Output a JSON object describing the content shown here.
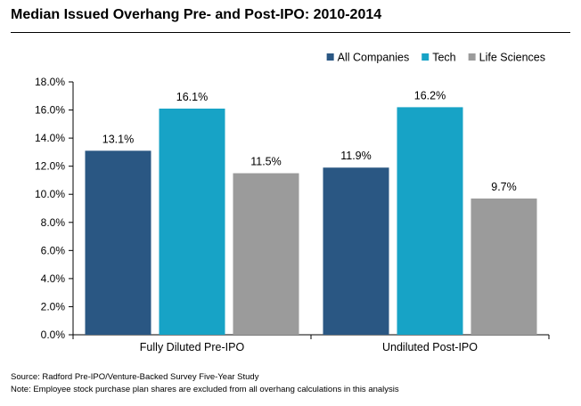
{
  "chart_data": {
    "type": "bar",
    "title": "Median Issued Overhang Pre- and Post-IPO: 2010-2014",
    "categories": [
      "Fully Diluted Pre-IPO",
      "Undiluted Post-IPO"
    ],
    "series": [
      {
        "name": "All Companies",
        "color": "#2a5783",
        "values": [
          13.1,
          11.9
        ],
        "labels": [
          "13.1%",
          "11.9%"
        ]
      },
      {
        "name": "Tech",
        "color": "#17a3c6",
        "values": [
          16.1,
          16.2
        ],
        "labels": [
          "16.1%",
          "16.2%"
        ]
      },
      {
        "name": "Life Sciences",
        "color": "#9b9b9b",
        "values": [
          11.5,
          9.7
        ],
        "labels": [
          "11.5%",
          "9.7%"
        ]
      }
    ],
    "ylim": [
      0,
      18
    ],
    "yticks": [
      0,
      2,
      4,
      6,
      8,
      10,
      12,
      14,
      16,
      18
    ],
    "ytick_labels": [
      "0.0%",
      "2.0%",
      "4.0%",
      "6.0%",
      "8.0%",
      "10.0%",
      "12.0%",
      "14.0%",
      "16.0%",
      "18.0%"
    ],
    "xlabel": "",
    "ylabel": "",
    "grid": false,
    "legend_position": "top-right"
  },
  "notes": {
    "source": "Source: Radford Pre-IPO/Venture-Backed Survey Five-Year Study",
    "footnote": "Note: Employee stock purchase plan shares are excluded from all overhang calculations in this analysis"
  }
}
